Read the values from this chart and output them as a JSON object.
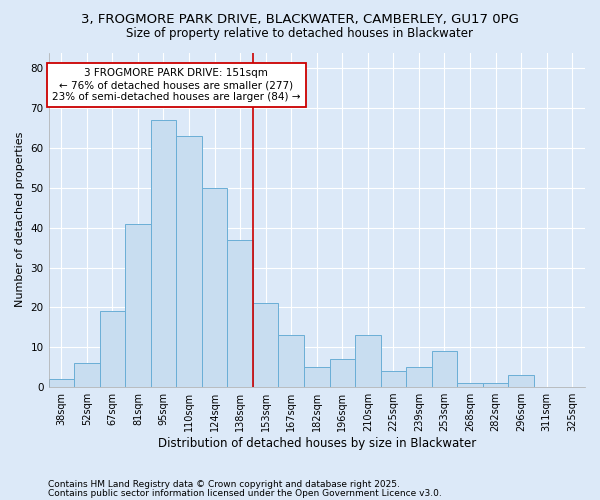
{
  "title_line1": "3, FROGMORE PARK DRIVE, BLACKWATER, CAMBERLEY, GU17 0PG",
  "title_line2": "Size of property relative to detached houses in Blackwater",
  "xlabel": "Distribution of detached houses by size in Blackwater",
  "ylabel": "Number of detached properties",
  "bar_labels": [
    "38sqm",
    "52sqm",
    "67sqm",
    "81sqm",
    "95sqm",
    "110sqm",
    "124sqm",
    "138sqm",
    "153sqm",
    "167sqm",
    "182sqm",
    "196sqm",
    "210sqm",
    "225sqm",
    "239sqm",
    "253sqm",
    "268sqm",
    "282sqm",
    "296sqm",
    "311sqm",
    "325sqm"
  ],
  "bar_heights": [
    2,
    6,
    19,
    41,
    67,
    63,
    50,
    37,
    21,
    13,
    5,
    7,
    13,
    4,
    5,
    9,
    1,
    1,
    3,
    0,
    0
  ],
  "bar_color": "#c8ddf0",
  "bar_edgecolor": "#6aaed6",
  "vline_x_index": 8,
  "annotation_text_line1": "3 FROGMORE PARK DRIVE: 151sqm",
  "annotation_text_line2": "← 76% of detached houses are smaller (277)",
  "annotation_text_line3": "23% of semi-detached houses are larger (84) →",
  "annotation_box_color": "#ffffff",
  "annotation_box_edgecolor": "#cc0000",
  "vline_color": "#cc0000",
  "footnote_line1": "Contains HM Land Registry data © Crown copyright and database right 2025.",
  "footnote_line2": "Contains public sector information licensed under the Open Government Licence v3.0.",
  "bg_color": "#dce9f8",
  "plot_bg_color": "#dce9f8",
  "ylim": [
    0,
    84
  ],
  "yticks": [
    0,
    10,
    20,
    30,
    40,
    50,
    60,
    70,
    80
  ],
  "grid_color": "#ffffff",
  "title_fontsize": 9.5,
  "subtitle_fontsize": 8.5,
  "axis_label_fontsize": 8,
  "tick_fontsize": 7,
  "annotation_fontsize": 7.5,
  "footnote_fontsize": 6.5
}
